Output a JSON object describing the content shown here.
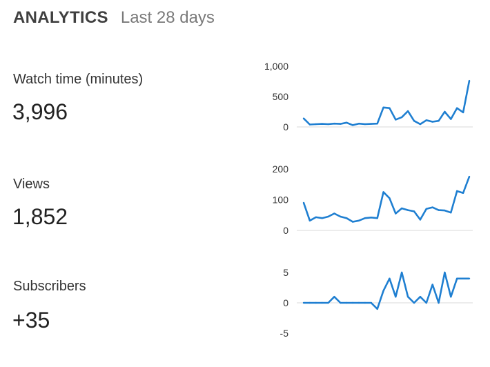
{
  "header": {
    "title": "ANALYTICS",
    "range": "Last 28 days"
  },
  "metrics": [
    {
      "label": "Watch time (minutes)",
      "value": "3,996",
      "chart_data": {
        "type": "line",
        "ylim": [
          0,
          1000
        ],
        "yticks": [
          "1,000",
          "500",
          "0"
        ],
        "ytick_values": [
          1000,
          500,
          0
        ],
        "color": "#1f7fd1",
        "values": [
          140,
          40,
          45,
          50,
          45,
          55,
          50,
          70,
          30,
          55,
          45,
          50,
          55,
          320,
          310,
          120,
          160,
          260,
          100,
          45,
          110,
          85,
          100,
          250,
          130,
          310,
          240,
          760
        ]
      }
    },
    {
      "label": "Views",
      "value": "1,852",
      "chart_data": {
        "type": "line",
        "ylim": [
          0,
          200
        ],
        "yticks": [
          "200",
          "100",
          "0"
        ],
        "ytick_values": [
          200,
          100,
          0
        ],
        "color": "#1f7fd1",
        "values": [
          90,
          32,
          43,
          40,
          45,
          55,
          45,
          40,
          28,
          32,
          40,
          42,
          40,
          125,
          105,
          55,
          72,
          66,
          62,
          35,
          70,
          75,
          66,
          65,
          58,
          128,
          122,
          175
        ]
      }
    },
    {
      "label": "Subscribers",
      "value": "+35",
      "chart_data": {
        "type": "line",
        "ylim": [
          -5,
          5
        ],
        "yticks": [
          "5",
          "0",
          "-5"
        ],
        "ytick_values": [
          5,
          0,
          -5
        ],
        "color": "#1f7fd1",
        "values": [
          0,
          0,
          0,
          0,
          0,
          1,
          0,
          0,
          0,
          0,
          0,
          0,
          -1,
          2,
          4,
          1,
          5,
          1,
          0,
          1,
          0,
          3,
          0,
          5,
          1,
          4,
          4,
          4
        ]
      }
    }
  ]
}
